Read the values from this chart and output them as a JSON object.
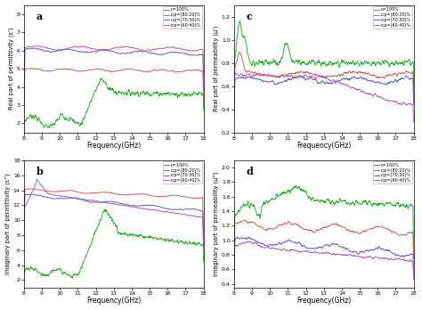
{
  "legend_labels": [
    "c=100%",
    "c:p=(80:20)%",
    "c:p=(70:30)%",
    "c:p=(60:40)%"
  ],
  "colors": [
    "#22aa22",
    "#cc5555",
    "#5555cc",
    "#aa55aa"
  ],
  "ax_a": {
    "ylabel": "Real part of permittivity (ε')",
    "xlabel": "Frequency(GHz)",
    "ylim": [
      1.5,
      8.5
    ],
    "yticks": [
      2,
      3,
      4,
      5,
      6,
      7,
      8
    ]
  },
  "ax_b": {
    "ylabel": "Imaginary part of permittivity (ε'')",
    "xlabel": "Frequency(GHz)",
    "ylim": [
      1,
      18
    ],
    "yticks": [
      2,
      4,
      6,
      8,
      10,
      12,
      14,
      16,
      18
    ]
  },
  "ax_c": {
    "ylabel": "Real part of permeability (μ')",
    "xlabel": "Frequency(GHz)",
    "ylim": [
      0.2,
      1.3
    ],
    "yticks": [
      0.2,
      0.4,
      0.6,
      0.8,
      1.0,
      1.2
    ]
  },
  "ax_d": {
    "ylabel": "Imaginary part of permeability (μ'')",
    "xlabel": "Frequency(GHz)",
    "ylim": [
      0.35,
      2.1
    ],
    "yticks": [
      0.4,
      0.6,
      0.8,
      1.0,
      1.2,
      1.4,
      1.6,
      1.8,
      2.0
    ]
  }
}
